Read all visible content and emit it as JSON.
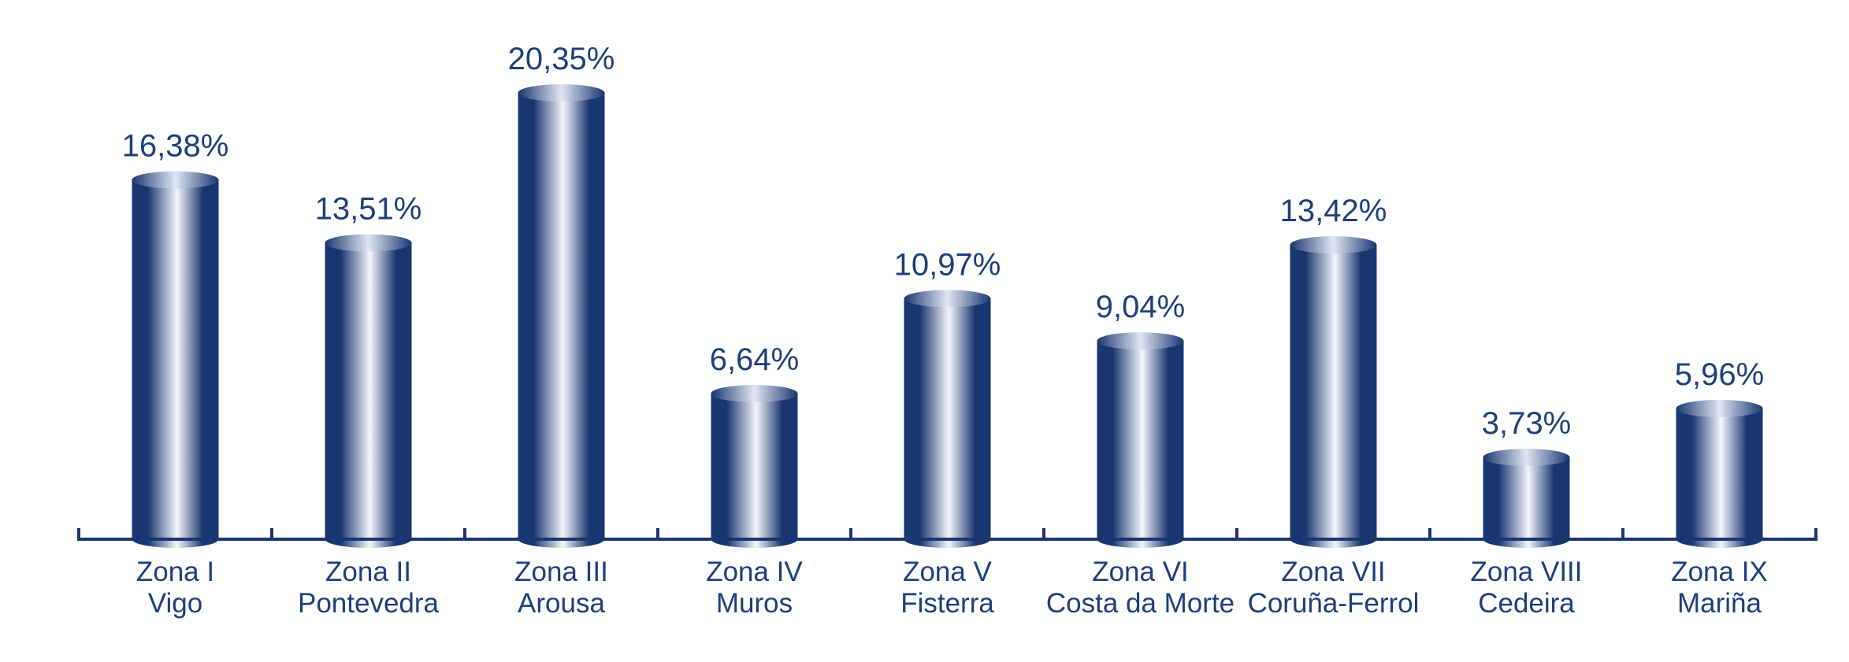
{
  "chart_data": {
    "type": "bar",
    "style": "cylinder",
    "categories": [
      [
        "Zona I",
        "Vigo"
      ],
      [
        "Zona II",
        "Pontevedra"
      ],
      [
        "Zona III",
        "Arousa"
      ],
      [
        "Zona IV",
        "Muros"
      ],
      [
        "Zona V",
        "Fisterra"
      ],
      [
        "Zona VI",
        "Costa da Morte"
      ],
      [
        "Zona VII",
        "Coruña-Ferrol"
      ],
      [
        "Zona VIII",
        "Cedeira"
      ],
      [
        "Zona IX",
        "Mariña"
      ]
    ],
    "values": [
      16.38,
      13.51,
      20.35,
      6.64,
      10.97,
      9.04,
      13.42,
      3.73,
      5.96
    ],
    "value_labels": [
      "16,38%",
      "13,51%",
      "20,35%",
      "6,64%",
      "10,97%",
      "9,04%",
      "13,42%",
      "3,73%",
      "5,96%"
    ],
    "ylim": [
      0,
      20.35
    ],
    "grid": false,
    "legend": false,
    "colors": {
      "bar_dark": "#1a3670",
      "bar_light": "#f4f6fb",
      "top_dark": "#1a3670",
      "top_light": "#dfe6f3",
      "text": "#1f3f7a",
      "axis": "#1a3670"
    }
  }
}
